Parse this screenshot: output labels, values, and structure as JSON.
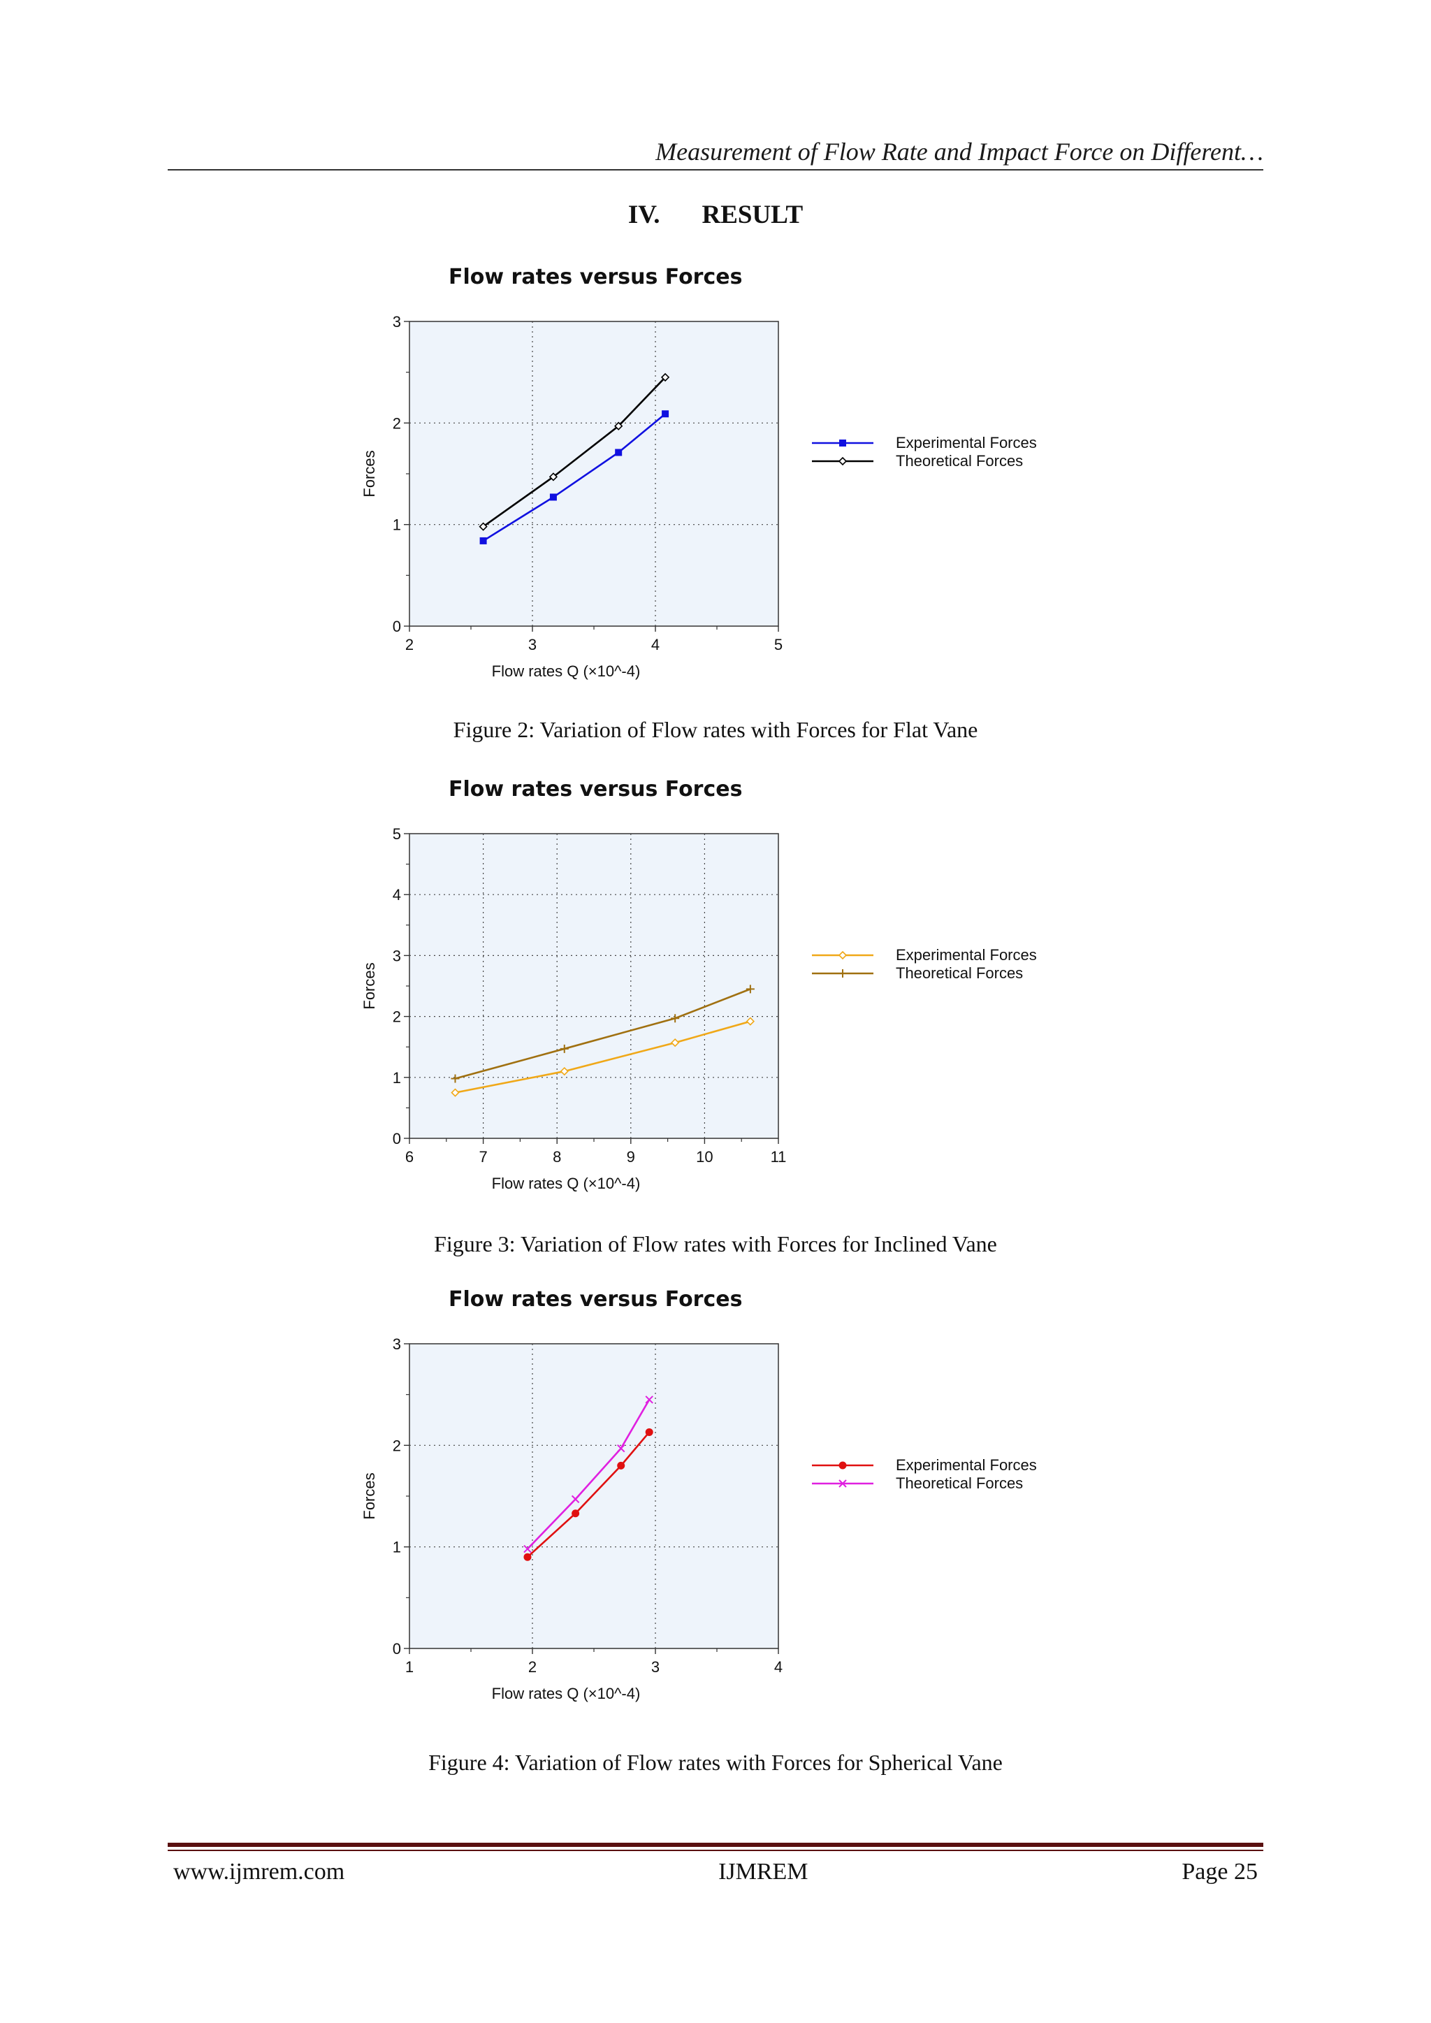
{
  "running_header": "Measurement of Flow Rate and Impact Force on Different…",
  "section": {
    "number": "IV.",
    "title": "RESULT"
  },
  "figures": [
    {
      "caption": "Figure 2: Variation of Flow rates with Forces for Flat Vane"
    },
    {
      "caption": "Figure 3: Variation of Flow rates with Forces for Inclined Vane"
    },
    {
      "caption": "Figure 4: Variation of Flow rates with Forces for Spherical Vane"
    }
  ],
  "chart_data": [
    {
      "type": "line",
      "title": "Flow rates versus Forces",
      "xlabel": "Flow rates Q (×10^-4)",
      "ylabel": "Forces",
      "xlim": [
        2,
        5
      ],
      "ylim": [
        0,
        3
      ],
      "xticks": [
        "2",
        "3",
        "4",
        "5"
      ],
      "yticks": [
        "0",
        "1",
        "2",
        "3"
      ],
      "grid": true,
      "legend_position": "right",
      "plot_background": "#eef4fb",
      "series": [
        {
          "name": "Experimental Forces",
          "color": "#1010e0",
          "marker": "square",
          "x": [
            2.6,
            3.17,
            3.7,
            4.08
          ],
          "y": [
            0.84,
            1.27,
            1.71,
            2.09
          ]
        },
        {
          "name": "Theoretical Forces",
          "color": "#000000",
          "marker": "diamond",
          "x": [
            2.6,
            3.17,
            3.7,
            4.08
          ],
          "y": [
            0.98,
            1.47,
            1.97,
            2.45
          ]
        }
      ]
    },
    {
      "type": "line",
      "title": "Flow rates versus Forces",
      "xlabel": "Flow rates Q (×10^-4)",
      "ylabel": "Forces",
      "xlim": [
        6,
        11
      ],
      "ylim": [
        0,
        5
      ],
      "xticks": [
        "6",
        "7",
        "8",
        "9",
        "10",
        "11"
      ],
      "yticks": [
        "0",
        "1",
        "2",
        "3",
        "4",
        "5"
      ],
      "grid": true,
      "legend_position": "right",
      "plot_background": "#eef4fb",
      "series": [
        {
          "name": "Experimental Forces",
          "color": "#f0a818",
          "marker": "diamond",
          "x": [
            6.62,
            8.1,
            9.6,
            10.62
          ],
          "y": [
            0.75,
            1.1,
            1.57,
            1.92
          ]
        },
        {
          "name": "Theoretical Forces",
          "color": "#a07010",
          "marker": "plus",
          "x": [
            6.62,
            8.1,
            9.6,
            10.62
          ],
          "y": [
            0.98,
            1.47,
            1.97,
            2.45
          ]
        }
      ]
    },
    {
      "type": "line",
      "title": "Flow rates versus Forces",
      "xlabel": "Flow rates Q (×10^-4)",
      "ylabel": "Forces",
      "xlim": [
        1,
        4
      ],
      "ylim": [
        0,
        3
      ],
      "xticks": [
        "1",
        "2",
        "3",
        "4"
      ],
      "yticks": [
        "0",
        "1",
        "2",
        "3"
      ],
      "grid": true,
      "legend_position": "right",
      "plot_background": "#eef4fb",
      "series": [
        {
          "name": "Experimental Forces",
          "color": "#e01010",
          "marker": "circle",
          "x": [
            1.96,
            2.35,
            2.72,
            2.95
          ],
          "y": [
            0.9,
            1.33,
            1.8,
            2.13
          ]
        },
        {
          "name": "Theoretical Forces",
          "color": "#e020e0",
          "marker": "x",
          "x": [
            1.96,
            2.35,
            2.72,
            2.95
          ],
          "y": [
            0.98,
            1.47,
            1.97,
            2.45
          ]
        }
      ]
    }
  ],
  "footer": {
    "left": "www.ijmrem.com",
    "center": "IJMREM",
    "right": "Page 25"
  }
}
